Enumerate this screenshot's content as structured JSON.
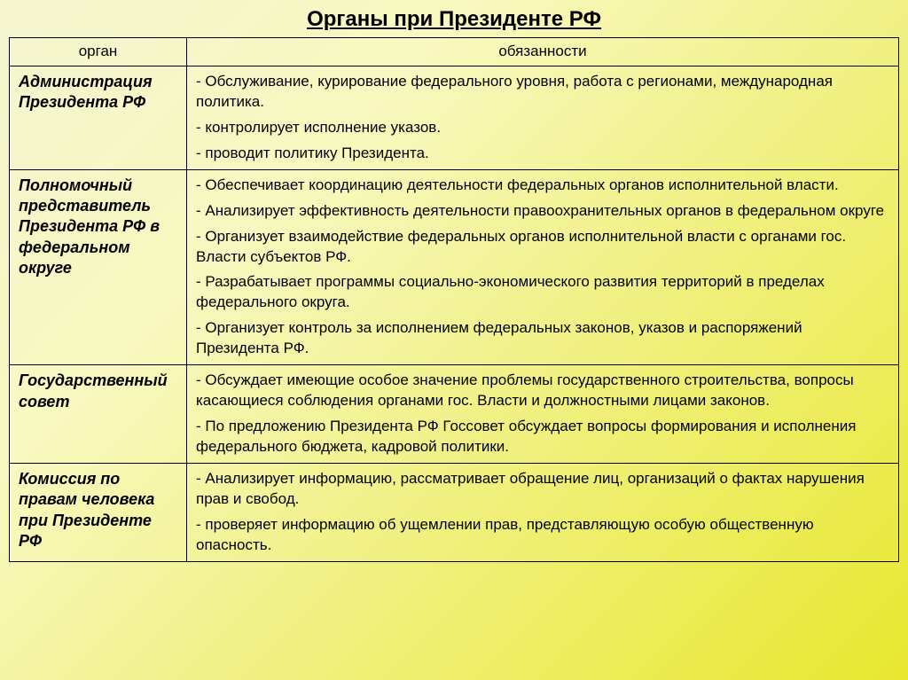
{
  "title": "Органы при Президенте РФ",
  "headers": {
    "organ": "орган",
    "duties": "обязанности"
  },
  "rows": [
    {
      "organ": "Администрация Президента РФ",
      "duties": [
        "- Обслуживание, курирование федерального уровня, работа с регионами, международная политика.",
        "- контролирует исполнение указов.",
        "- проводит политику Президента."
      ]
    },
    {
      "organ": "Полномочный представитель Президента РФ в федеральном округе",
      "duties": [
        "- Обеспечивает координацию деятельности федеральных органов исполнительной власти.",
        "- Анализирует эффективность деятельности правоохранительных органов в федеральном округе",
        "- Организует взаимодействие федеральных органов исполнительной власти с органами гос. Власти субъектов РФ.",
        "- Разрабатывает программы социально-экономического развития территорий в пределах федерального округа.",
        "- Организует контроль за исполнением федеральных законов, указов и распоряжений Президента РФ."
      ]
    },
    {
      "organ": "Государственный совет",
      "duties": [
        "- Обсуждает имеющие особое значение  проблемы государственного строительства, вопросы касающиеся соблюдения органами гос. Власти и должностными лицами законов.",
        "- По предложению Президента РФ Госсовет обсуждает вопросы формирования и исполнения федерального бюджета, кадровой политики."
      ]
    },
    {
      "organ": "Комиссия по правам человека при Президенте РФ",
      "duties": [
        "- Анализирует информацию, рассматривает обращение лиц, организаций о фактах  нарушения прав и свобод.",
        "- проверяет информацию об ущемлении прав, представляющую особую общественную опасность."
      ]
    }
  ],
  "styling": {
    "title_fontsize": 24,
    "cell_fontsize": 17,
    "organ_fontsize": 18,
    "border_color": "#000000",
    "text_color": "#000000",
    "bg_gradient_start": "#f5f5d0",
    "bg_gradient_end": "#e8e830",
    "col_organ_width": 200
  }
}
